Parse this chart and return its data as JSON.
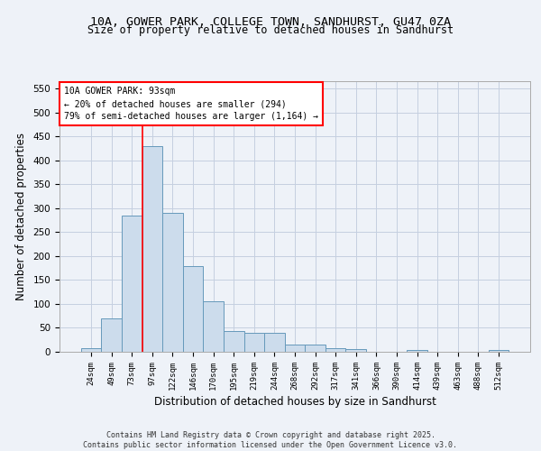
{
  "title_line1": "10A, GOWER PARK, COLLEGE TOWN, SANDHURST, GU47 0ZA",
  "title_line2": "Size of property relative to detached houses in Sandhurst",
  "xlabel": "Distribution of detached houses by size in Sandhurst",
  "ylabel": "Number of detached properties",
  "categories": [
    "24sqm",
    "49sqm",
    "73sqm",
    "97sqm",
    "122sqm",
    "146sqm",
    "170sqm",
    "195sqm",
    "219sqm",
    "244sqm",
    "268sqm",
    "292sqm",
    "317sqm",
    "341sqm",
    "366sqm",
    "390sqm",
    "414sqm",
    "439sqm",
    "463sqm",
    "488sqm",
    "512sqm"
  ],
  "values": [
    8,
    70,
    285,
    430,
    290,
    178,
    105,
    43,
    40,
    40,
    16,
    16,
    8,
    5,
    0,
    0,
    3,
    0,
    0,
    0,
    3
  ],
  "bar_color": "#ccdcec",
  "bar_edge_color": "#6699bb",
  "ylim": [
    0,
    565
  ],
  "yticks": [
    0,
    50,
    100,
    150,
    200,
    250,
    300,
    350,
    400,
    450,
    500,
    550
  ],
  "red_line_x": 2.5,
  "annotation_title": "10A GOWER PARK: 93sqm",
  "annotation_line1": "← 20% of detached houses are smaller (294)",
  "annotation_line2": "79% of semi-detached houses are larger (1,164) →",
  "footer_line1": "Contains HM Land Registry data © Crown copyright and database right 2025.",
  "footer_line2": "Contains public sector information licensed under the Open Government Licence v3.0.",
  "background_color": "#eef2f8",
  "grid_color": "#c5cfe0"
}
